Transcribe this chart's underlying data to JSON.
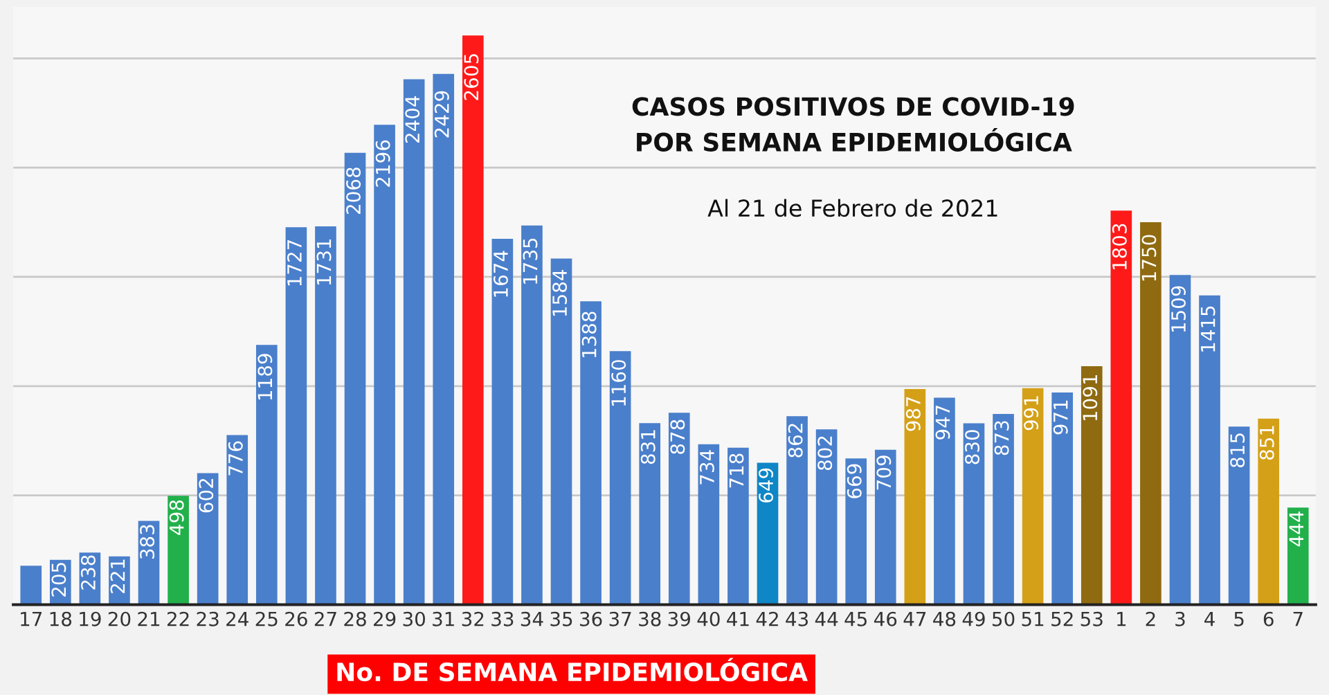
{
  "chart_data": {
    "type": "bar",
    "title": "CASOS POSITIVOS DE COVID-19\nPOR SEMANA EPIDEMIOLÓGICA",
    "subtitle": "Al 21 de Febrero de 2021",
    "xlabel": "No. DE SEMANA EPIDEMIOLÓGICA",
    "categories": [
      "17",
      "18",
      "19",
      "20",
      "21",
      "22",
      "23",
      "24",
      "25",
      "26",
      "27",
      "28",
      "29",
      "30",
      "31",
      "32",
      "33",
      "34",
      "35",
      "36",
      "37",
      "38",
      "39",
      "40",
      "41",
      "42",
      "43",
      "44",
      "45",
      "46",
      "47",
      "48",
      "49",
      "50",
      "51",
      "52",
      "53",
      "1",
      "2",
      "3",
      "4",
      "5",
      "6",
      "7"
    ],
    "values": [
      178,
      205,
      238,
      221,
      383,
      498,
      602,
      776,
      1189,
      1727,
      1731,
      2068,
      2196,
      2404,
      2429,
      2605,
      1674,
      1735,
      1584,
      1388,
      1160,
      831,
      878,
      734,
      718,
      649,
      862,
      802,
      669,
      709,
      987,
      947,
      830,
      873,
      991,
      971,
      1091,
      1803,
      1750,
      1509,
      1415,
      815,
      851,
      444
    ],
    "value_labels": [
      null,
      "205",
      "238",
      "221",
      "383",
      "498",
      "602",
      "776",
      "1189",
      "1727",
      "1731",
      "2068",
      "2196",
      "2404",
      "2429",
      "2605",
      "1674",
      "1735",
      "1584",
      "1388",
      "1160",
      "831",
      "878",
      "734",
      "718",
      "649",
      "862",
      "802",
      "669",
      "709",
      "987",
      "947",
      "830",
      "873",
      "991",
      "971",
      "1091",
      "1803",
      "1750",
      "1509",
      "1415",
      "815",
      "851",
      "444"
    ],
    "colors": [
      "#4a7fcb",
      "#4a7fcb",
      "#4a7fcb",
      "#4a7fcb",
      "#4a7fcb",
      "#22b04b",
      "#4a7fcb",
      "#4a7fcb",
      "#4a7fcb",
      "#4a7fcb",
      "#4a7fcb",
      "#4a7fcb",
      "#4a7fcb",
      "#4a7fcb",
      "#4a7fcb",
      "#ff1a1a",
      "#4a7fcb",
      "#4a7fcb",
      "#4a7fcb",
      "#4a7fcb",
      "#4a7fcb",
      "#4a7fcb",
      "#4a7fcb",
      "#4a7fcb",
      "#4a7fcb",
      "#0f86c6",
      "#4a7fcb",
      "#4a7fcb",
      "#4a7fcb",
      "#4a7fcb",
      "#d4a017",
      "#4a7fcb",
      "#4a7fcb",
      "#4a7fcb",
      "#d4a017",
      "#4a7fcb",
      "#8f6a10",
      "#ff1a1a",
      "#8f6a10",
      "#4a7fcb",
      "#4a7fcb",
      "#4a7fcb",
      "#d4a017",
      "#22b04b"
    ],
    "yticks": [
      {
        "value": 500,
        "label": null
      },
      {
        "value": 1000,
        "label": null
      },
      {
        "value": 1500,
        "label": null
      },
      {
        "value": 2000,
        "label": null
      },
      {
        "value": 2500,
        "label": null
      }
    ],
    "grid": "y",
    "tick_labels": "x"
  }
}
